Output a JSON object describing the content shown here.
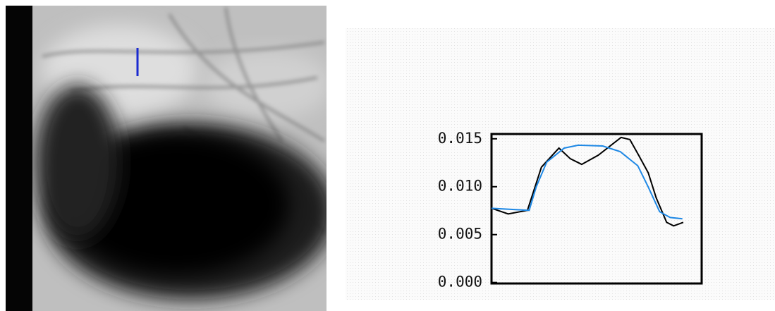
{
  "chart_data": {
    "type": "line",
    "ylim": [
      -0.0001,
      0.0155
    ],
    "yticks": [
      {
        "value": 0,
        "label": "0.000"
      },
      {
        "value": 0.005,
        "label": "0.005"
      },
      {
        "value": 0.01,
        "label": "0.010"
      },
      {
        "value": 0.015,
        "label": "0.015"
      }
    ],
    "xlim": [
      0,
      24
    ],
    "series": [
      {
        "color": "#000000",
        "x": [
          0,
          1.9,
          4.1,
          5.7,
          7.7,
          9.0,
          10.3,
          12.2,
          14.8,
          15.8,
          16.8,
          17.9,
          18.8,
          20.0,
          20.8,
          21.9
        ],
        "values": [
          0.00775,
          0.00716,
          0.00753,
          0.01204,
          0.01403,
          0.01292,
          0.01233,
          0.01329,
          0.01514,
          0.01492,
          0.01329,
          0.01145,
          0.00886,
          0.00628,
          0.00591,
          0.00628
        ]
      },
      {
        "color": "#1e88e5",
        "x": [
          0,
          4.3,
          5.1,
          6.3,
          8.3,
          9.9,
          12.7,
          14.7,
          16.7,
          17.9,
          19.2,
          20.4,
          21.8
        ],
        "values": [
          0.00775,
          0.00753,
          0.00997,
          0.01256,
          0.01403,
          0.01433,
          0.01425,
          0.01366,
          0.01219,
          0.00997,
          0.00739,
          0.00679,
          0.00665
        ]
      }
    ]
  }
}
